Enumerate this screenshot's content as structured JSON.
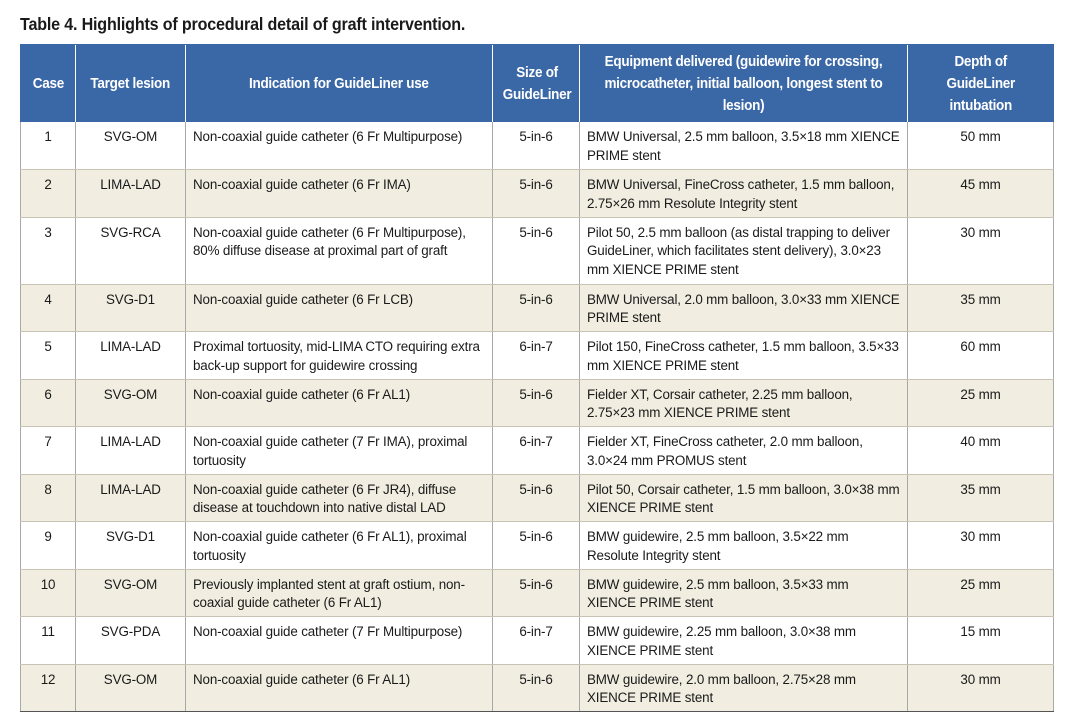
{
  "caption": "Table 4. Highlights of procedural detail of graft intervention.",
  "headers": {
    "case": "Case",
    "target": "Target lesion",
    "indication": "Indication for GuideLiner use",
    "size": "Size of GuideLiner",
    "equipment": "Equipment delivered (guidewire for crossing, microcatheter, initial balloon, longest stent to lesion)",
    "depth": "Depth of GuideLiner intubation"
  },
  "rows": [
    {
      "case": "1",
      "target": "SVG-OM",
      "indication": "Non-coaxial guide catheter (6 Fr Multipurpose)",
      "size": "5-in-6",
      "equipment": "BMW Universal, 2.5 mm balloon, 3.5×18 mm XIENCE PRIME stent",
      "depth": "50 mm"
    },
    {
      "case": "2",
      "target": "LIMA-LAD",
      "indication": "Non-coaxial guide catheter (6 Fr IMA)",
      "size": "5-in-6",
      "equipment": "BMW Universal, FineCross catheter, 1.5 mm balloon, 2.75×26 mm Resolute Integrity stent",
      "depth": "45 mm"
    },
    {
      "case": "3",
      "target": "SVG-RCA",
      "indication": "Non-coaxial guide catheter (6 Fr Multipurpose), 80% diffuse disease at proximal part of graft",
      "size": "5-in-6",
      "equipment": "Pilot 50, 2.5 mm balloon (as distal trapping to deliver GuideLiner, which facilitates stent delivery), 3.0×23 mm XIENCE PRIME stent",
      "depth": "30 mm"
    },
    {
      "case": "4",
      "target": "SVG-D1",
      "indication": "Non-coaxial guide catheter (6 Fr LCB)",
      "size": "5-in-6",
      "equipment": "BMW Universal, 2.0 mm balloon, 3.0×33 mm XIENCE PRIME stent",
      "depth": "35 mm"
    },
    {
      "case": "5",
      "target": "LIMA-LAD",
      "indication": "Proximal tortuosity, mid-LIMA CTO requiring extra back-up support for guidewire crossing",
      "size": "6-in-7",
      "equipment": "Pilot 150, FineCross catheter, 1.5 mm balloon, 3.5×33 mm XIENCE PRIME stent",
      "depth": "60 mm"
    },
    {
      "case": "6",
      "target": "SVG-OM",
      "indication": "Non-coaxial guide catheter (6 Fr AL1)",
      "size": "5-in-6",
      "equipment": "Fielder XT, Corsair catheter, 2.25 mm balloon, 2.75×23 mm XIENCE PRIME stent",
      "depth": "25 mm"
    },
    {
      "case": "7",
      "target": "LIMA-LAD",
      "indication": "Non-coaxial guide catheter (7 Fr IMA), proximal tortuosity",
      "size": "6-in-7",
      "equipment": "Fielder XT, FineCross catheter, 2.0 mm balloon, 3.0×24 mm PROMUS stent",
      "depth": "40 mm"
    },
    {
      "case": "8",
      "target": "LIMA-LAD",
      "indication": "Non-coaxial guide catheter (6 Fr JR4), diffuse disease at touchdown into native distal LAD",
      "size": "5-in-6",
      "equipment": "Pilot 50, Corsair catheter, 1.5 mm balloon, 3.0×38 mm XIENCE PRIME stent",
      "depth": "35 mm"
    },
    {
      "case": "9",
      "target": "SVG-D1",
      "indication": "Non-coaxial guide catheter (6 Fr AL1), proximal tortuosity",
      "size": "5-in-6",
      "equipment": "BMW guidewire, 2.5 mm balloon, 3.5×22 mm Resolute Integrity stent",
      "depth": "30 mm"
    },
    {
      "case": "10",
      "target": "SVG-OM",
      "indication": "Previously implanted stent at graft ostium, non-coaxial guide catheter (6 Fr AL1)",
      "size": "5-in-6",
      "equipment": "BMW guidewire, 2.5 mm balloon, 3.5×33 mm XIENCE PRIME stent",
      "depth": "25 mm"
    },
    {
      "case": "11",
      "target": "SVG-PDA",
      "indication": "Non-coaxial guide catheter (7 Fr Multipurpose)",
      "size": "6-in-7",
      "equipment": "BMW guidewire, 2.25 mm balloon, 3.0×38 mm XIENCE PRIME stent",
      "depth": "15 mm"
    },
    {
      "case": "12",
      "target": "SVG-OM",
      "indication": "Non-coaxial guide catheter (6 Fr AL1)",
      "size": "5-in-6",
      "equipment": "BMW guidewire, 2.0 mm balloon, 2.75×28 mm XIENCE PRIME stent",
      "depth": "30 mm"
    }
  ]
}
